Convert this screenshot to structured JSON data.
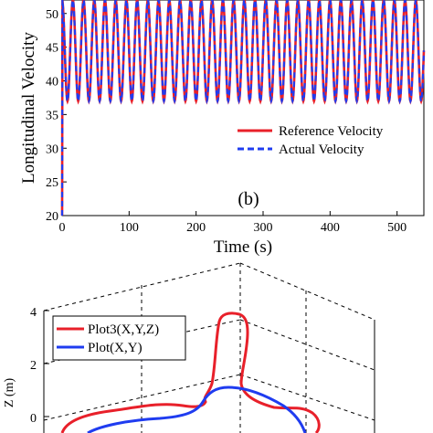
{
  "chart_data": [
    {
      "type": "line",
      "panel_label": "(b)",
      "xlabel": "Time (s)",
      "ylabel": "Longitudinal Velocity",
      "xlim": [
        0,
        540
      ],
      "ylim": [
        20,
        52
      ],
      "x_ticks": [
        0,
        100,
        200,
        300,
        400,
        500
      ],
      "y_ticks": [
        20,
        25,
        30,
        35,
        40,
        45,
        50
      ],
      "legend_position": "lower-right",
      "series": [
        {
          "name": "Reference Velocity",
          "color": "#e8202a",
          "style": "solid",
          "pattern": "periodic oscillation",
          "period": 16,
          "min": 37,
          "max": 52,
          "start": 0,
          "end": 540
        },
        {
          "name": "Actual Velocity",
          "color": "#1f3cf0",
          "style": "dashed",
          "pattern": "periodic oscillation",
          "period": 16,
          "min": 37,
          "max": 52,
          "start": 0,
          "end": 540
        }
      ]
    },
    {
      "type": "line",
      "zlabel": "Z (m)",
      "z_ticks": [
        0,
        2,
        4
      ],
      "zlim": [
        0,
        4
      ],
      "legend_position": "top-left",
      "series": [
        {
          "name": "Plot3(X,Y,Z)",
          "color": "#e8202a",
          "style": "solid"
        },
        {
          "name": "Plot(X,Y)",
          "color": "#1f3cf0",
          "style": "solid"
        }
      ]
    }
  ]
}
